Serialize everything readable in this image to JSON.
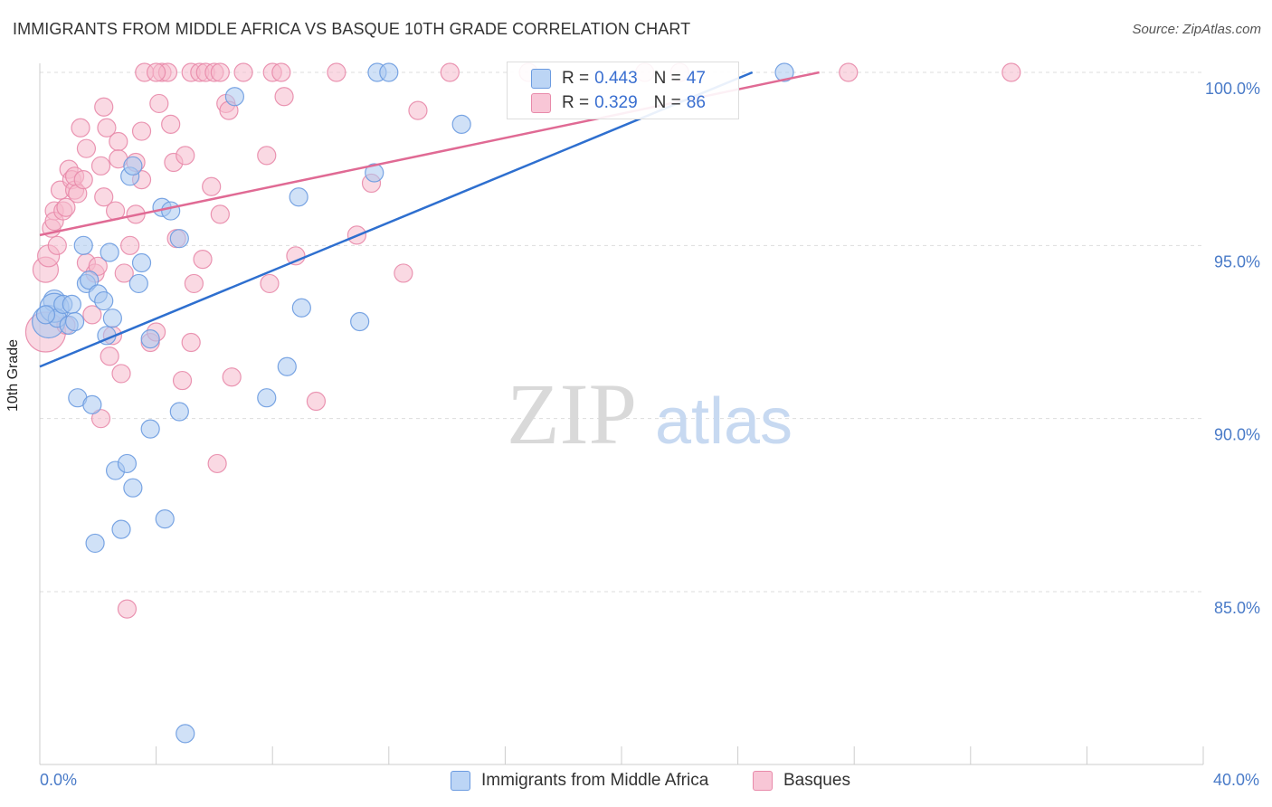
{
  "title": "IMMIGRANTS FROM MIDDLE AFRICA VS BASQUE 10TH GRADE CORRELATION CHART",
  "source": "Source: ZipAtlas.com",
  "watermark": {
    "zip": "ZIP",
    "atlas": "atlas"
  },
  "legend": {
    "rows": [
      {
        "r_label": "R =",
        "r_value": "0.443",
        "n_label": "N =",
        "n_value": "47"
      },
      {
        "r_label": "R =",
        "r_value": "0.329",
        "n_label": "N =",
        "n_value": "86"
      }
    ]
  },
  "bottom_legend": {
    "items": [
      {
        "label": "Immigrants from Middle Africa"
      },
      {
        "label": "Basques"
      }
    ]
  },
  "x_axis": {
    "min_label": "0.0%",
    "max_label": "40.0%"
  },
  "colors": {
    "blue_fill": "#a9c8f0",
    "blue_stroke": "#6b9be0",
    "blue_line": "#2e6fcf",
    "pink_fill": "#f5b9cc",
    "pink_stroke": "#e88aaa",
    "pink_line": "#e06a94",
    "tick_label": "#4a7bc8",
    "grid": "#dddddd"
  },
  "chart_data": {
    "type": "scatter",
    "title": "IMMIGRANTS FROM MIDDLE AFRICA VS BASQUE 10TH GRADE CORRELATION CHART",
    "xlabel": "",
    "ylabel": "10th Grade",
    "xlim": [
      0,
      40
    ],
    "ylim": [
      80.5,
      100.5
    ],
    "y_ticks": [
      85,
      90,
      95,
      100
    ],
    "y_tick_labels": [
      "85.0%",
      "90.0%",
      "95.0%",
      "100.0%"
    ],
    "grid": "horizontal dashed",
    "legend_placement": "top-center",
    "series": [
      {
        "name": "Immigrants from Middle Africa",
        "r": 0.443,
        "n": 47,
        "trend": {
          "x": [
            0,
            24.5
          ],
          "y": [
            91.5,
            100.0
          ]
        },
        "points": [
          [
            0.3,
            92.8,
            18
          ],
          [
            0.5,
            93.4,
            12
          ],
          [
            0.5,
            93.2,
            16
          ],
          [
            0.6,
            92.9,
            10
          ],
          [
            0.8,
            93.3,
            10
          ],
          [
            1.0,
            92.7,
            10
          ],
          [
            1.1,
            93.3,
            10
          ],
          [
            1.3,
            90.6,
            10
          ],
          [
            1.5,
            95.0,
            10
          ],
          [
            1.6,
            93.9,
            10
          ],
          [
            1.7,
            94.0,
            10
          ],
          [
            1.8,
            90.4,
            10
          ],
          [
            1.9,
            86.4,
            10
          ],
          [
            2.0,
            93.6,
            10
          ],
          [
            2.2,
            93.4,
            10
          ],
          [
            2.3,
            92.4,
            10
          ],
          [
            2.4,
            94.8,
            10
          ],
          [
            2.5,
            92.9,
            10
          ],
          [
            2.6,
            88.5,
            10
          ],
          [
            2.8,
            86.8,
            10
          ],
          [
            3.0,
            88.7,
            10
          ],
          [
            3.1,
            97.0,
            10
          ],
          [
            3.2,
            88.0,
            10
          ],
          [
            3.2,
            97.3,
            10
          ],
          [
            3.4,
            93.9,
            10
          ],
          [
            3.5,
            94.5,
            10
          ],
          [
            3.8,
            92.3,
            10
          ],
          [
            3.8,
            89.7,
            10
          ],
          [
            4.2,
            96.1,
            10
          ],
          [
            4.3,
            87.1,
            10
          ],
          [
            4.5,
            96.0,
            10
          ],
          [
            4.8,
            90.2,
            10
          ],
          [
            4.8,
            95.2,
            10
          ],
          [
            5.0,
            80.9,
            10
          ],
          [
            6.7,
            99.3,
            10
          ],
          [
            7.8,
            90.6,
            10
          ],
          [
            8.5,
            91.5,
            10
          ],
          [
            8.9,
            96.4,
            10
          ],
          [
            9.0,
            93.2,
            10
          ],
          [
            11.0,
            92.8,
            10
          ],
          [
            11.5,
            97.1,
            10
          ],
          [
            11.6,
            100.0,
            10
          ],
          [
            12.0,
            100.0,
            10
          ],
          [
            14.5,
            98.5,
            10
          ],
          [
            25.6,
            100.0,
            10
          ],
          [
            0.2,
            93.0,
            10
          ],
          [
            1.2,
            92.8,
            10
          ]
        ]
      },
      {
        "name": "Basques",
        "r": 0.329,
        "n": 86,
        "trend": {
          "x": [
            0,
            26.8
          ],
          "y": [
            95.3,
            100.0
          ]
        },
        "points": [
          [
            0.2,
            92.5,
            22
          ],
          [
            0.2,
            94.3,
            14
          ],
          [
            0.3,
            94.7,
            12
          ],
          [
            0.4,
            95.5,
            10
          ],
          [
            0.5,
            96.0,
            10
          ],
          [
            0.5,
            95.7,
            10
          ],
          [
            0.6,
            95.0,
            10
          ],
          [
            0.7,
            96.6,
            10
          ],
          [
            0.8,
            96.0,
            10
          ],
          [
            0.9,
            96.1,
            10
          ],
          [
            1.0,
            97.2,
            10
          ],
          [
            1.1,
            96.9,
            10
          ],
          [
            1.2,
            96.6,
            10
          ],
          [
            1.2,
            97.0,
            10
          ],
          [
            1.3,
            96.5,
            10
          ],
          [
            1.4,
            98.4,
            10
          ],
          [
            1.5,
            96.9,
            10
          ],
          [
            1.6,
            97.8,
            10
          ],
          [
            1.6,
            94.5,
            10
          ],
          [
            1.8,
            93.0,
            10
          ],
          [
            1.9,
            94.2,
            10
          ],
          [
            2.0,
            94.4,
            10
          ],
          [
            2.1,
            90.0,
            10
          ],
          [
            2.1,
            97.3,
            10
          ],
          [
            2.2,
            96.4,
            10
          ],
          [
            2.3,
            98.4,
            10
          ],
          [
            2.4,
            91.8,
            10
          ],
          [
            2.5,
            92.4,
            10
          ],
          [
            2.6,
            96.0,
            10
          ],
          [
            2.7,
            98.0,
            10
          ],
          [
            2.7,
            97.5,
            10
          ],
          [
            2.8,
            91.3,
            10
          ],
          [
            2.9,
            94.2,
            10
          ],
          [
            3.0,
            84.5,
            10
          ],
          [
            3.1,
            95.0,
            10
          ],
          [
            3.3,
            95.9,
            10
          ],
          [
            3.3,
            97.4,
            10
          ],
          [
            3.5,
            96.9,
            10
          ],
          [
            3.5,
            98.3,
            10
          ],
          [
            3.6,
            100.0,
            10
          ],
          [
            3.8,
            92.2,
            10
          ],
          [
            4.0,
            92.5,
            10
          ],
          [
            4.1,
            99.1,
            10
          ],
          [
            4.2,
            100.0,
            10
          ],
          [
            4.4,
            100.0,
            10
          ],
          [
            4.5,
            98.5,
            10
          ],
          [
            4.6,
            97.4,
            10
          ],
          [
            4.7,
            95.2,
            10
          ],
          [
            4.9,
            91.1,
            10
          ],
          [
            5.0,
            97.6,
            10
          ],
          [
            5.2,
            100.0,
            10
          ],
          [
            5.2,
            92.2,
            10
          ],
          [
            5.3,
            93.9,
            10
          ],
          [
            5.5,
            100.0,
            10
          ],
          [
            5.6,
            94.6,
            10
          ],
          [
            5.7,
            100.0,
            10
          ],
          [
            5.9,
            96.7,
            10
          ],
          [
            6.0,
            100.0,
            10
          ],
          [
            6.1,
            88.7,
            10
          ],
          [
            6.2,
            95.9,
            10
          ],
          [
            6.2,
            100.0,
            10
          ],
          [
            6.4,
            99.1,
            10
          ],
          [
            6.5,
            98.9,
            10
          ],
          [
            6.6,
            91.2,
            10
          ],
          [
            7.0,
            100.0,
            10
          ],
          [
            7.8,
            97.6,
            10
          ],
          [
            7.9,
            93.9,
            10
          ],
          [
            8.0,
            100.0,
            10
          ],
          [
            8.4,
            99.3,
            10
          ],
          [
            8.8,
            94.7,
            10
          ],
          [
            9.5,
            90.5,
            10
          ],
          [
            10.9,
            95.3,
            10
          ],
          [
            11.4,
            96.8,
            10
          ],
          [
            12.5,
            94.2,
            10
          ],
          [
            13.0,
            98.9,
            10
          ],
          [
            14.1,
            100.0,
            10
          ],
          [
            16.8,
            100.0,
            10
          ],
          [
            20.8,
            100.0,
            10
          ],
          [
            22.0,
            100.0,
            10
          ],
          [
            27.8,
            100.0,
            10
          ],
          [
            33.4,
            100.0,
            10
          ],
          [
            2.2,
            99.0,
            10
          ],
          [
            4.0,
            100.0,
            10
          ],
          [
            8.3,
            100.0,
            10
          ],
          [
            10.2,
            100.0,
            10
          ],
          [
            0.9,
            92.7,
            10
          ]
        ]
      }
    ]
  }
}
